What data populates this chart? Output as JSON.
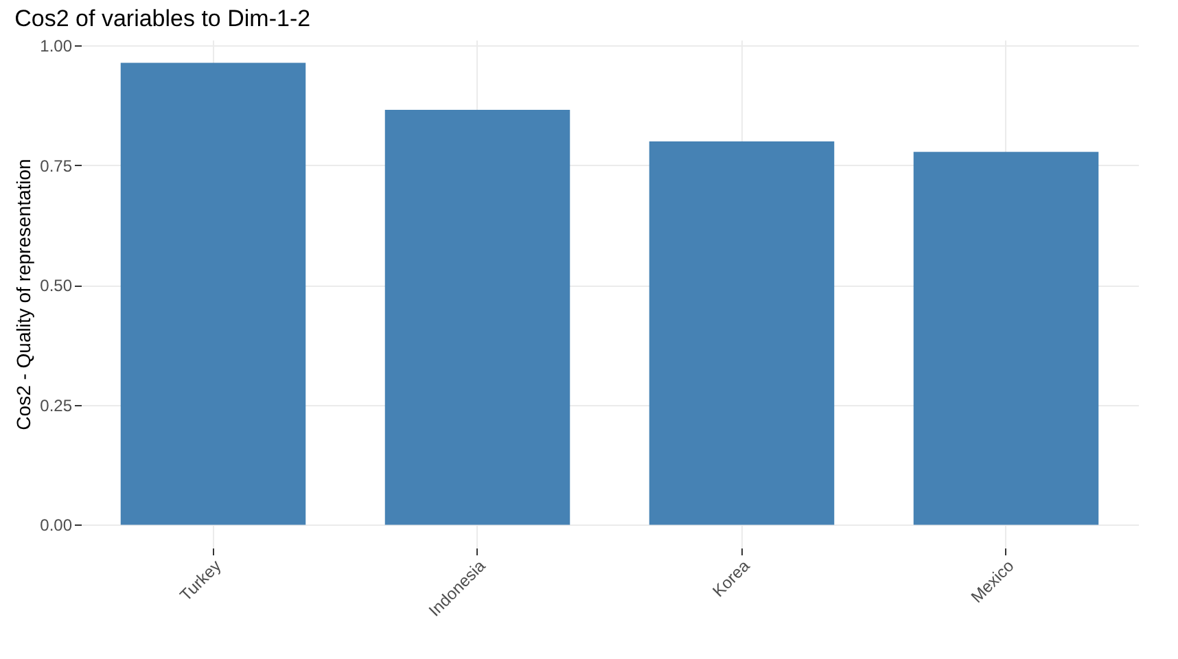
{
  "chart_data": {
    "type": "bar",
    "title": "Cos2 of variables to Dim-1-2",
    "ylabel": "Cos2 - Quality of representation",
    "categories": [
      "Turkey",
      "Indonesia",
      "Korea",
      "Mexico"
    ],
    "values": [
      0.964,
      0.866,
      0.8,
      0.778
    ],
    "color": "#4682b4",
    "ylim": [
      -0.048,
      1.012
    ],
    "yticks": [
      {
        "value": 0,
        "label": "0.00"
      },
      {
        "value": 0.25,
        "label": "0.25"
      },
      {
        "value": 0.5,
        "label": "0.50"
      },
      {
        "value": 0.75,
        "label": "0.75"
      },
      {
        "value": 1,
        "label": "1.00"
      }
    ],
    "grid": true
  }
}
